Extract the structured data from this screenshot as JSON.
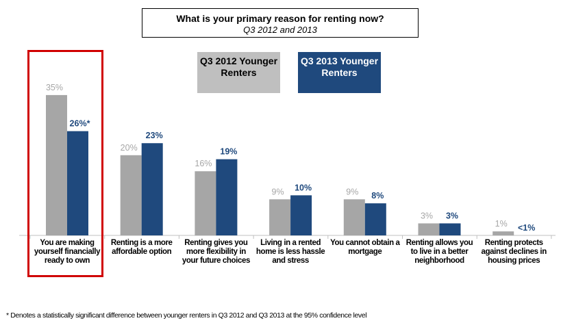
{
  "chart_data": {
    "type": "bar",
    "title": "What is your primary  reason for renting now?",
    "subtitle": "Q3 2012 and 2013",
    "categories": [
      "You are making yourself financially ready to own",
      "Renting is a more affordable option",
      "Renting gives you more flexibility in your future choices",
      "Living in a rented home is less hassle and stress",
      "You cannot obtain a mortgage",
      "Renting allows you to live in a better neighborhood",
      "Renting protects against declines in housing prices"
    ],
    "series": [
      {
        "name": "Q3 2012 Younger Renters",
        "color": "#a6a6a6",
        "values": [
          35,
          20,
          16,
          9,
          9,
          3,
          1
        ],
        "labels": [
          "35%",
          "20%",
          "16%",
          "9%",
          "9%",
          "3%",
          "1%"
        ]
      },
      {
        "name": "Q3 2013 Younger Renters",
        "color": "#1f497d",
        "values": [
          26,
          23,
          19,
          10,
          8,
          3,
          0
        ],
        "labels": [
          "26%*",
          "23%",
          "19%",
          "10%",
          "8%",
          "3%",
          "<1%"
        ]
      }
    ],
    "ylim": [
      0,
      35
    ],
    "legend_placement": "top-center",
    "grid": false,
    "highlighted_category": 0,
    "footnote": "* Denotes a statistically significant difference between younger renters in Q3 2012 and Q3 2013 at the 95% confidence level"
  }
}
